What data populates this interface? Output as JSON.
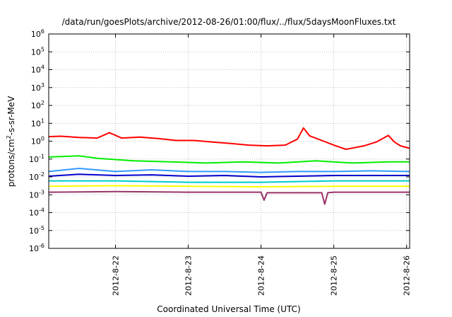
{
  "chart_data": {
    "type": "line",
    "title": "/data/run/goesPlots/archive/2012-08-26/01:00/flux/../flux/5daysMoonFluxes.txt",
    "xlabel": "Coordinated Universal Time (UTC)",
    "ylabel": {
      "prefix": "protons/cm",
      "sup": "2",
      "suffix": "-s-sr-MeV"
    },
    "yscale": "log",
    "ylim": [
      1e-06,
      1000000.0
    ],
    "y_ticks": [
      {
        "base": "10",
        "exp": "-6"
      },
      {
        "base": "10",
        "exp": "-5"
      },
      {
        "base": "10",
        "exp": "-4"
      },
      {
        "base": "10",
        "exp": "-3"
      },
      {
        "base": "10",
        "exp": "-2"
      },
      {
        "base": "10",
        "exp": "-1"
      },
      {
        "base": "10",
        "exp": "0"
      },
      {
        "base": "10",
        "exp": "1"
      },
      {
        "base": "10",
        "exp": "2"
      },
      {
        "base": "10",
        "exp": "3"
      },
      {
        "base": "10",
        "exp": "4"
      },
      {
        "base": "10",
        "exp": "5"
      },
      {
        "base": "10",
        "exp": "6"
      }
    ],
    "xlim": [
      "2012-08-21 02:00",
      "2012-08-26 01:00"
    ],
    "x_ticks": [
      "2012-8-22",
      "2012-8-23",
      "2012-8-24",
      "2012-8-25",
      "2012-8-26"
    ],
    "grid": true,
    "series": [
      {
        "color": "#ff0000",
        "values": [
          [
            "2012-08-21 02:00",
            1.8
          ],
          [
            "2012-08-21 06:00",
            1.9
          ],
          [
            "2012-08-21 12:00",
            1.6
          ],
          [
            "2012-08-21 18:00",
            1.5
          ],
          [
            "2012-08-21 22:00",
            3.0
          ],
          [
            "2012-08-22 02:00",
            1.5
          ],
          [
            "2012-08-22 08:00",
            1.7
          ],
          [
            "2012-08-22 14:00",
            1.4
          ],
          [
            "2012-08-22 20:00",
            1.1
          ],
          [
            "2012-08-23 02:00",
            1.1
          ],
          [
            "2012-08-23 08:00",
            0.9
          ],
          [
            "2012-08-23 14:00",
            0.75
          ],
          [
            "2012-08-23 20:00",
            0.6
          ],
          [
            "2012-08-24 02:00",
            0.55
          ],
          [
            "2012-08-24 08:00",
            0.6
          ],
          [
            "2012-08-24 12:00",
            1.3
          ],
          [
            "2012-08-24 14:00",
            5.5
          ],
          [
            "2012-08-24 16:00",
            2.0
          ],
          [
            "2012-08-24 20:00",
            1.1
          ],
          [
            "2012-08-25 00:00",
            0.6
          ],
          [
            "2012-08-25 04:00",
            0.35
          ],
          [
            "2012-08-25 10:00",
            0.55
          ],
          [
            "2012-08-25 14:00",
            0.9
          ],
          [
            "2012-08-25 18:00",
            2.1
          ],
          [
            "2012-08-25 20:00",
            0.9
          ],
          [
            "2012-08-25 22:00",
            0.55
          ],
          [
            "2012-08-26 01:00",
            0.4
          ]
        ]
      },
      {
        "color": "#00ee00",
        "values": [
          [
            "2012-08-21 02:00",
            0.13
          ],
          [
            "2012-08-21 12:00",
            0.15
          ],
          [
            "2012-08-21 18:00",
            0.11
          ],
          [
            "2012-08-22 06:00",
            0.08
          ],
          [
            "2012-08-22 18:00",
            0.07
          ],
          [
            "2012-08-23 06:00",
            0.06
          ],
          [
            "2012-08-23 18:00",
            0.07
          ],
          [
            "2012-08-24 06:00",
            0.06
          ],
          [
            "2012-08-24 18:00",
            0.08
          ],
          [
            "2012-08-25 06:00",
            0.06
          ],
          [
            "2012-08-25 18:00",
            0.07
          ],
          [
            "2012-08-26 01:00",
            0.07
          ]
        ]
      },
      {
        "color": "#3399ff",
        "values": [
          [
            "2012-08-21 02:00",
            0.02
          ],
          [
            "2012-08-21 12:00",
            0.03
          ],
          [
            "2012-08-22 00:00",
            0.02
          ],
          [
            "2012-08-22 12:00",
            0.025
          ],
          [
            "2012-08-23 00:00",
            0.02
          ],
          [
            "2012-08-23 12:00",
            0.02
          ],
          [
            "2012-08-24 00:00",
            0.018
          ],
          [
            "2012-08-24 12:00",
            0.02
          ],
          [
            "2012-08-25 00:00",
            0.02
          ],
          [
            "2012-08-25 12:00",
            0.022
          ],
          [
            "2012-08-26 01:00",
            0.02
          ]
        ]
      },
      {
        "color": "#0000cc",
        "values": [
          [
            "2012-08-21 02:00",
            0.011
          ],
          [
            "2012-08-21 12:00",
            0.014
          ],
          [
            "2012-08-22 00:00",
            0.012
          ],
          [
            "2012-08-22 12:00",
            0.013
          ],
          [
            "2012-08-23 00:00",
            0.011
          ],
          [
            "2012-08-23 12:00",
            0.012
          ],
          [
            "2012-08-24 00:00",
            0.01
          ],
          [
            "2012-08-24 12:00",
            0.011
          ],
          [
            "2012-08-25 00:00",
            0.012
          ],
          [
            "2012-08-25 12:00",
            0.012
          ],
          [
            "2012-08-26 01:00",
            0.012
          ]
        ]
      },
      {
        "color": "#00cccc",
        "values": [
          [
            "2012-08-21 02:00",
            0.006
          ],
          [
            "2012-08-22 00:00",
            0.006
          ],
          [
            "2012-08-23 00:00",
            0.005
          ],
          [
            "2012-08-24 00:00",
            0.005
          ],
          [
            "2012-08-25 00:00",
            0.006
          ],
          [
            "2012-08-26 01:00",
            0.006
          ]
        ]
      },
      {
        "color": "#ffff00",
        "values": [
          [
            "2012-08-21 02:00",
            0.003
          ],
          [
            "2012-08-22 00:00",
            0.0032
          ],
          [
            "2012-08-23 00:00",
            0.003
          ],
          [
            "2012-08-24 00:00",
            0.0028
          ],
          [
            "2012-08-25 00:00",
            0.003
          ],
          [
            "2012-08-26 01:00",
            0.003
          ]
        ]
      },
      {
        "color": "#993366",
        "values": [
          [
            "2012-08-21 02:00",
            0.0014
          ],
          [
            "2012-08-22 00:00",
            0.0015
          ],
          [
            "2012-08-23 00:00",
            0.0014
          ],
          [
            "2012-08-24 00:00",
            0.0014
          ],
          [
            "2012-08-24 01:00",
            0.0005
          ],
          [
            "2012-08-24 02:00",
            0.0013
          ],
          [
            "2012-08-24 20:00",
            0.0013
          ],
          [
            "2012-08-24 21:00",
            0.0003
          ],
          [
            "2012-08-24 22:00",
            0.0013
          ],
          [
            "2012-08-25 00:00",
            0.0014
          ],
          [
            "2012-08-26 01:00",
            0.0014
          ]
        ]
      }
    ]
  }
}
